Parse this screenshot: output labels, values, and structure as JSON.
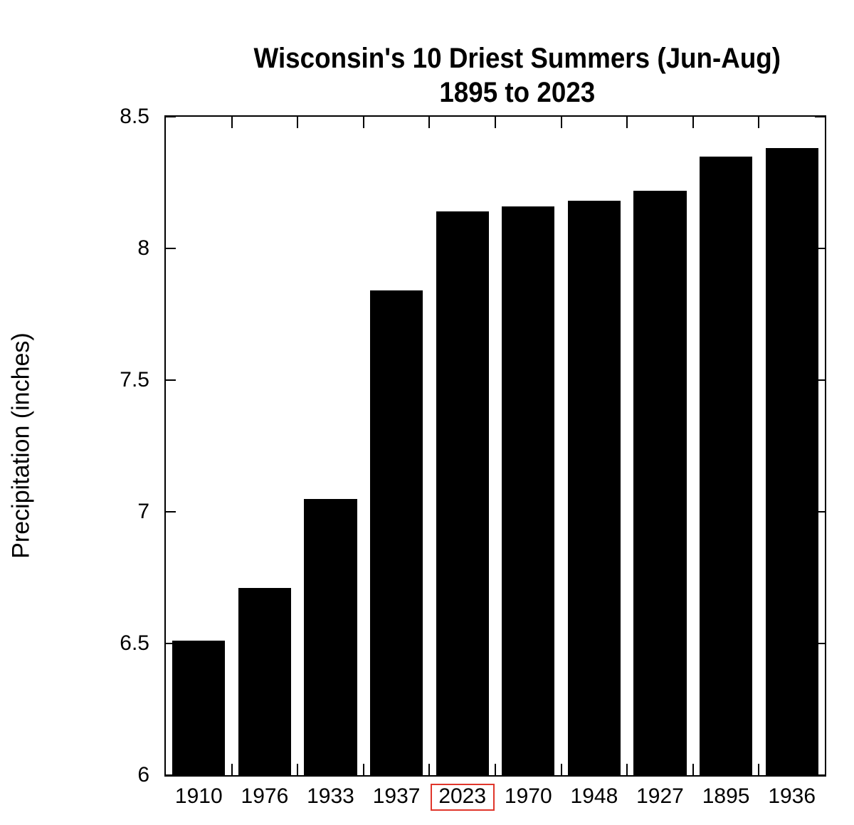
{
  "chart_data": {
    "type": "bar",
    "title": "Wisconsin's 10 Driest Summers (Jun-Aug)",
    "subtitle": "1895 to 2023",
    "xlabel": "",
    "ylabel": "Precipitation (inches)",
    "ylim": [
      6,
      8.5
    ],
    "yticks": [
      "6",
      "6.5",
      "7",
      "7.5",
      "8",
      "8.5"
    ],
    "grid": false,
    "legend": null,
    "categories": [
      "1910",
      "1976",
      "1933",
      "1937",
      "2023",
      "1970",
      "1948",
      "1927",
      "1895",
      "1936"
    ],
    "values": [
      6.51,
      6.71,
      7.05,
      7.84,
      8.14,
      8.16,
      8.18,
      8.22,
      8.35,
      8.38
    ],
    "highlighted_category": "2023",
    "bar_color": "#000000",
    "highlight_color": "#e0362b"
  }
}
